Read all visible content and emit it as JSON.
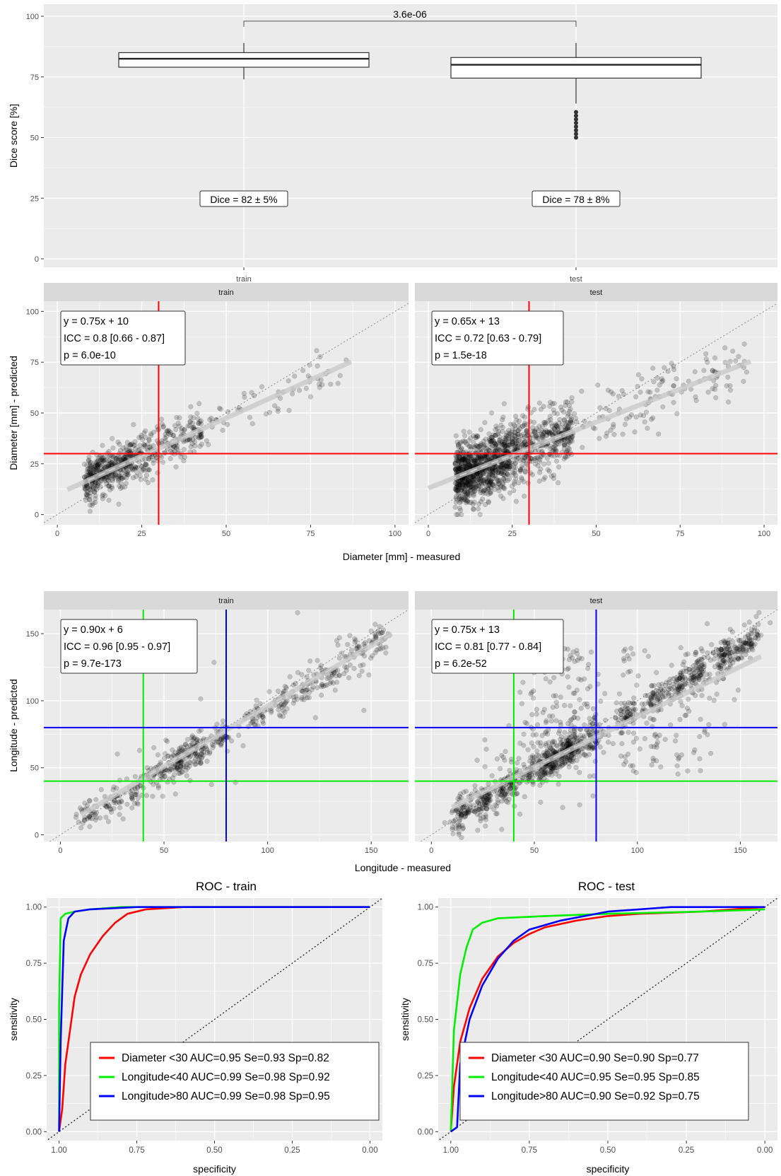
{
  "chart_data": [
    {
      "type": "box",
      "categories": [
        "train",
        "test"
      ],
      "ylabel": "Dice score [%]",
      "ylim": [
        0,
        100
      ],
      "yticks": [
        0,
        25,
        50,
        75,
        100
      ],
      "boxes": [
        {
          "name": "train",
          "min": 74,
          "q1": 79,
          "median": 82.5,
          "q3": 85,
          "max": 89,
          "outliers": [],
          "label": "Dice = 82 ± 5%"
        },
        {
          "name": "test",
          "min": 64,
          "q1": 74.5,
          "median": 80,
          "q3": 83,
          "max": 89,
          "outliers": [
            50,
            51.5,
            53,
            54.5,
            56,
            57.5,
            59,
            60.5
          ],
          "label": "Dice = 78 ± 8%"
        }
      ],
      "comparison": {
        "from": "train",
        "to": "test",
        "y": 98,
        "p_label": "3.6e-06"
      }
    },
    {
      "type": "scatter",
      "facets": [
        "train",
        "test"
      ],
      "xlabel": "Diameter [mm] - measured",
      "ylabel": "Diameter [mm] - predicted",
      "xlim": [
        -4,
        104
      ],
      "ylim": [
        -5,
        105
      ],
      "xticks": [
        0,
        25,
        50,
        75,
        100
      ],
      "yticks": [
        0,
        25,
        50,
        75,
        100
      ],
      "threshold_lines": [
        {
          "axis": "x",
          "value": 30,
          "color": "#ff0000"
        },
        {
          "axis": "y",
          "value": 30,
          "color": "#ff0000"
        }
      ],
      "panels": [
        {
          "facet": "train",
          "stats": [
            "y = 0.75x + 10",
            "ICC = 0.8 [0.66 - 0.87]",
            "p = 6.0e-10"
          ],
          "fit": {
            "slope": 0.75,
            "intercept": 10,
            "x": [
              3,
              87
            ]
          }
        },
        {
          "facet": "test",
          "stats": [
            "y = 0.65x + 13",
            "ICC = 0.72 [0.63 - 0.79]",
            "p = 1.5e-18"
          ],
          "fit": {
            "slope": 0.65,
            "intercept": 13,
            "x": [
              0,
              96
            ]
          }
        }
      ]
    },
    {
      "type": "scatter",
      "facets": [
        "train",
        "test"
      ],
      "xlabel": "Longitude - measured",
      "ylabel": "Longitude - predicted",
      "xlim": [
        -8,
        168
      ],
      "ylim": [
        -5,
        168
      ],
      "xticks": [
        0,
        50,
        100,
        150
      ],
      "yticks": [
        0,
        50,
        100,
        150
      ],
      "threshold_lines": [
        {
          "axis": "x",
          "value": 40,
          "color": "#00ee00"
        },
        {
          "axis": "y",
          "value": 40,
          "color": "#00ee00"
        },
        {
          "axis": "x",
          "value": 80,
          "color": "#0000ff"
        },
        {
          "axis": "y",
          "value": 80,
          "color": "#0000ff"
        }
      ],
      "panels": [
        {
          "facet": "train",
          "stats": [
            "y = 0.90x + 6",
            "ICC = 0.96 [0.95 - 0.97]",
            "p = 9.7e-173"
          ],
          "fit": {
            "slope": 0.9,
            "intercept": 6,
            "x": [
              10,
              160
            ]
          }
        },
        {
          "facet": "test",
          "stats": [
            "y = 0.75x + 13",
            "ICC = 0.81 [0.77 - 0.84]",
            "p = 6.2e-52"
          ],
          "fit": {
            "slope": 0.75,
            "intercept": 13,
            "x": [
              10,
              160
            ]
          }
        }
      ]
    },
    {
      "type": "line",
      "panels": [
        {
          "title": "ROC - train",
          "xlabel": "specificity",
          "ylabel": "sensitivity",
          "xlim": [
            1.0,
            0.0
          ],
          "ylim": [
            0,
            1
          ],
          "xticks": [
            "1.00",
            "0.75",
            "0.50",
            "0.25",
            "0.00"
          ],
          "yticks": [
            "0.00",
            "0.25",
            "0.50",
            "0.75",
            "1.00"
          ],
          "series": [
            {
              "name": "Diameter <30 AUC=0.95 Se=0.93 Sp=0.82",
              "color": "#ff0000",
              "points": [
                [
                  1,
                  0
                ],
                [
                  0.99,
                  0.1
                ],
                [
                  0.98,
                  0.3
                ],
                [
                  0.96,
                  0.5
                ],
                [
                  0.95,
                  0.6
                ],
                [
                  0.93,
                  0.7
                ],
                [
                  0.9,
                  0.79
                ],
                [
                  0.86,
                  0.87
                ],
                [
                  0.82,
                  0.93
                ],
                [
                  0.78,
                  0.97
                ],
                [
                  0.72,
                  0.99
                ],
                [
                  0.6,
                  1.0
                ],
                [
                  0,
                  1
                ]
              ]
            },
            {
              "name": "Longitude<40 AUC=0.99 Se=0.98 Sp=0.92",
              "color": "#00ee00",
              "points": [
                [
                  1,
                  0
                ],
                [
                  1,
                  0.55
                ],
                [
                  0.995,
                  0.95
                ],
                [
                  0.98,
                  0.97
                ],
                [
                  0.95,
                  0.98
                ],
                [
                  0.9,
                  0.99
                ],
                [
                  0.8,
                  1.0
                ],
                [
                  0,
                  1
                ]
              ]
            },
            {
              "name": "Longitude>80 AUC=0.99 Se=0.98 Sp=0.95",
              "color": "#0000ff",
              "points": [
                [
                  1,
                  0
                ],
                [
                  0.995,
                  0.4
                ],
                [
                  0.985,
                  0.85
                ],
                [
                  0.97,
                  0.95
                ],
                [
                  0.95,
                  0.98
                ],
                [
                  0.9,
                  0.99
                ],
                [
                  0.75,
                  1.0
                ],
                [
                  0,
                  1
                ]
              ]
            }
          ]
        },
        {
          "title": "ROC - test",
          "xlabel": "specificity",
          "ylabel": "sensitivity",
          "xlim": [
            1.0,
            0.0
          ],
          "ylim": [
            0,
            1
          ],
          "xticks": [
            "1.00",
            "0.75",
            "0.50",
            "0.25",
            "0.00"
          ],
          "yticks": [
            "0.00",
            "0.25",
            "0.50",
            "0.75",
            "1.00"
          ],
          "series": [
            {
              "name": "Diameter <30 AUC=0.90 Se=0.90 Sp=0.77",
              "color": "#ff0000",
              "points": [
                [
                  1,
                  0
                ],
                [
                  0.99,
                  0.2
                ],
                [
                  0.97,
                  0.4
                ],
                [
                  0.94,
                  0.55
                ],
                [
                  0.9,
                  0.68
                ],
                [
                  0.85,
                  0.78
                ],
                [
                  0.8,
                  0.84
                ],
                [
                  0.75,
                  0.88
                ],
                [
                  0.7,
                  0.91
                ],
                [
                  0.6,
                  0.94
                ],
                [
                  0.5,
                  0.96
                ],
                [
                  0.4,
                  0.97
                ],
                [
                  0.2,
                  0.98
                ],
                [
                  0,
                  1
                ]
              ]
            },
            {
              "name": "Longitude<40 AUC=0.95 Se=0.95 Sp=0.85",
              "color": "#00ee00",
              "points": [
                [
                  1,
                  0
                ],
                [
                  0.99,
                  0.45
                ],
                [
                  0.97,
                  0.7
                ],
                [
                  0.95,
                  0.82
                ],
                [
                  0.93,
                  0.9
                ],
                [
                  0.9,
                  0.93
                ],
                [
                  0.85,
                  0.95
                ],
                [
                  0.7,
                  0.96
                ],
                [
                  0.5,
                  0.97
                ],
                [
                  0.2,
                  0.98
                ],
                [
                  0,
                  0.99
                ]
              ]
            },
            {
              "name": "Longitude>80 AUC=0.90 Se=0.92 Sp=0.75",
              "color": "#0000ff",
              "points": [
                [
                  1,
                  0
                ],
                [
                  0.98,
                  0.02
                ],
                [
                  0.97,
                  0.3
                ],
                [
                  0.94,
                  0.5
                ],
                [
                  0.9,
                  0.65
                ],
                [
                  0.85,
                  0.77
                ],
                [
                  0.8,
                  0.85
                ],
                [
                  0.75,
                  0.9
                ],
                [
                  0.65,
                  0.94
                ],
                [
                  0.5,
                  0.98
                ],
                [
                  0.3,
                  1.0
                ],
                [
                  0,
                  1
                ]
              ]
            }
          ]
        }
      ]
    }
  ]
}
